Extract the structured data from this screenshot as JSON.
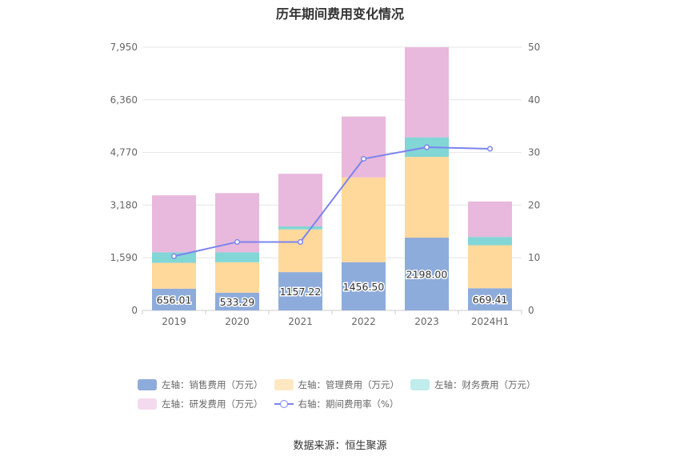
{
  "chart_data": {
    "type": "bar",
    "title": "历年期间费用变化情况",
    "categories": [
      "2019",
      "2020",
      "2021",
      "2022",
      "2023",
      "2024H1"
    ],
    "left_axis": {
      "min": 0,
      "max": 7950,
      "ticks": [
        "0",
        "1,590",
        "3,180",
        "4,770",
        "6,360",
        "7,950"
      ]
    },
    "right_axis": {
      "min": 0,
      "max": 50,
      "ticks": [
        "0",
        "10",
        "20",
        "30",
        "40",
        "50"
      ]
    },
    "series": [
      {
        "name": "左轴：销售费用（万元）",
        "axis": "left",
        "color": "#8eacdb",
        "values": [
          656.01,
          533.29,
          1157.22,
          1456.5,
          2198.0,
          669.41
        ],
        "labels": [
          "656.01",
          "533.29",
          "1157.22",
          "1456.50",
          "2198.00",
          "669.41"
        ]
      },
      {
        "name": "左轴：管理费用（万元）",
        "axis": "left",
        "color": "#ffd89c",
        "values": [
          780,
          920,
          1290,
          2560,
          2440,
          1300
        ]
      },
      {
        "name": "左轴：财务费用（万元）",
        "axis": "left",
        "color": "#82d6d6",
        "values": [
          320,
          300,
          90,
          0,
          590,
          250
        ]
      },
      {
        "name": "左轴：研发费用（万元）",
        "axis": "left",
        "color": "#e8b9dc",
        "values": [
          1720,
          1790,
          1590,
          1840,
          2720,
          1070
        ]
      },
      {
        "name": "右轴：期间费用率（%）",
        "axis": "right",
        "type": "line",
        "color": "#7b84ee",
        "values": [
          10.3,
          13.0,
          13.0,
          28.8,
          31.0,
          30.7
        ]
      }
    ],
    "legend": {
      "row1": [
        "左轴：销售费用（万元）",
        "左轴：管理费用（万元）",
        "左轴：财务费用（万元）"
      ],
      "row2": [
        "左轴：研发费用（万元）",
        "右轴：期间费用率（%）"
      ]
    },
    "colors": {
      "legend_sales": "#8eacdb",
      "legend_admin": "#ffe7c1",
      "legend_finance": "#c0ecec",
      "legend_rd": "#f3dbed",
      "line": "#7b84ee",
      "grid": "#e6e6e6",
      "axis_text": "#666666"
    }
  },
  "footer": {
    "source": "数据来源：恒生聚源"
  }
}
